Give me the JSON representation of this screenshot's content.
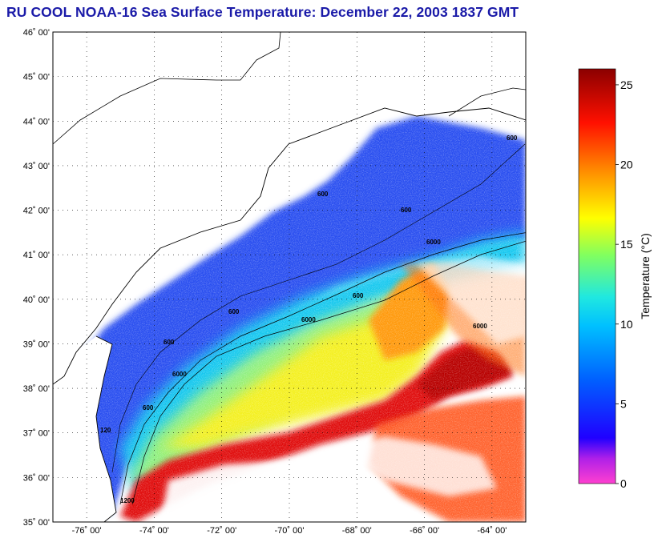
{
  "title": "RU COOL  NOAA-16  Sea Surface Temperature:  December 22, 2003 1837 GMT",
  "latitude_labels": [
    "46˚ 00'",
    "45˚ 00'",
    "44˚ 00'",
    "43˚ 00'",
    "42˚ 00'",
    "41˚ 00'",
    "40˚ 00'",
    "39˚ 00'",
    "38˚ 00'",
    "37˚ 00'",
    "36˚ 00'",
    "35˚ 00'"
  ],
  "longitude_labels": [
    "-76˚ 00'",
    "-74˚ 00'",
    "-72˚ 00'",
    "-70˚ 00'",
    "-68˚ 00'",
    "-66˚ 00'",
    "-64˚ 00'"
  ],
  "colorbar": {
    "label": "Temperature (°C)",
    "ticks": [
      "25",
      "20",
      "15",
      "10",
      "5",
      "0"
    ],
    "range": [
      0,
      26
    ],
    "colors": [
      "#ff3fd0",
      "#a020f0",
      "#0000ff",
      "#0080ff",
      "#00d0ff",
      "#80ff80",
      "#ffff00",
      "#ff8000",
      "#ff0000",
      "#8b0000"
    ]
  },
  "contour_labels": [
    "600",
    "600",
    "600",
    "6000",
    "6000",
    "600",
    "600",
    "6000",
    "600",
    "120",
    "6000",
    "600",
    "1200"
  ]
}
